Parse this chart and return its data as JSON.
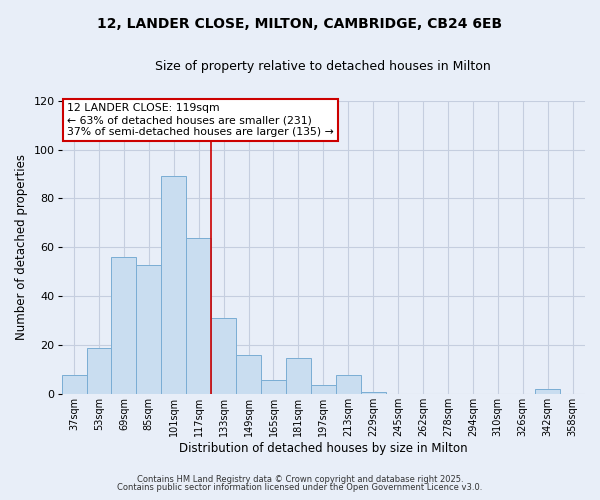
{
  "title": "12, LANDER CLOSE, MILTON, CAMBRIDGE, CB24 6EB",
  "subtitle": "Size of property relative to detached houses in Milton",
  "xlabel": "Distribution of detached houses by size in Milton",
  "ylabel": "Number of detached properties",
  "bar_color": "#c9ddf0",
  "bar_edge_color": "#7aadd4",
  "background_color": "#e8eef8",
  "plot_bg_color": "#e8eef8",
  "grid_color": "#c5cedf",
  "categories": [
    "37sqm",
    "53sqm",
    "69sqm",
    "85sqm",
    "101sqm",
    "117sqm",
    "133sqm",
    "149sqm",
    "165sqm",
    "181sqm",
    "197sqm",
    "213sqm",
    "229sqm",
    "245sqm",
    "262sqm",
    "278sqm",
    "294sqm",
    "310sqm",
    "326sqm",
    "342sqm",
    "358sqm"
  ],
  "values": [
    8,
    19,
    56,
    53,
    89,
    64,
    31,
    16,
    6,
    15,
    4,
    8,
    1,
    0,
    0,
    0,
    0,
    0,
    0,
    2,
    0
  ],
  "vline_color": "#cc0000",
  "vline_x_index": 5,
  "annotation_title": "12 LANDER CLOSE: 119sqm",
  "annotation_line1": "← 63% of detached houses are smaller (231)",
  "annotation_line2": "37% of semi-detached houses are larger (135) →",
  "annotation_box_color": "#ffffff",
  "annotation_box_edge": "#cc0000",
  "ylim": [
    0,
    120
  ],
  "yticks": [
    0,
    20,
    40,
    60,
    80,
    100,
    120
  ],
  "footnote1": "Contains HM Land Registry data © Crown copyright and database right 2025.",
  "footnote2": "Contains public sector information licensed under the Open Government Licence v3.0."
}
